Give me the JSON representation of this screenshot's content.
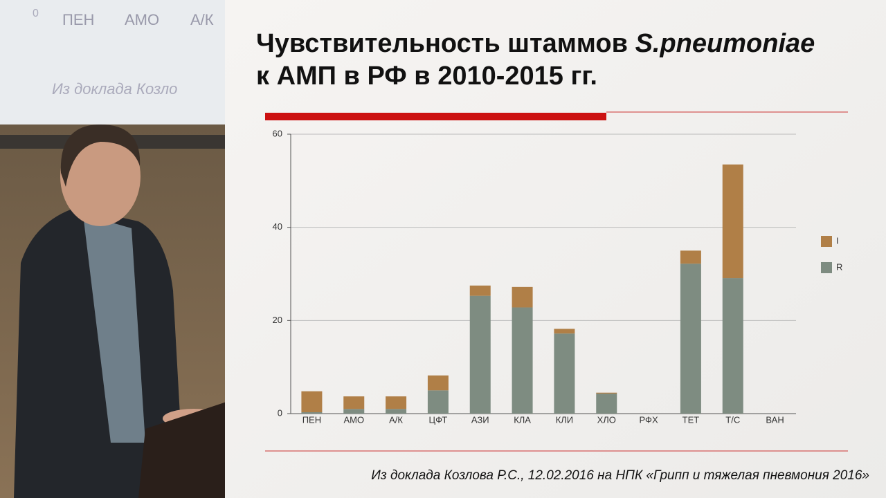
{
  "background_slide": {
    "texts": [
      "0",
      "ПЕН",
      "АМО",
      "А/К",
      "Из доклада Козло"
    ]
  },
  "chart_data": {
    "type": "stacked-bar",
    "title_parts": [
      "Чувствительность штаммов ",
      "S.pneumoniae",
      "к АМП в РФ в 2010-2015 гг."
    ],
    "categories": [
      "ПЕН",
      "АМО",
      "А/К",
      "ЦФТ",
      "АЗИ",
      "КЛА",
      "КЛИ",
      "ХЛО",
      "РФХ",
      "ТЕТ",
      "Т/С",
      "ВАН"
    ],
    "series": [
      {
        "name": "I",
        "color": "#b07f47",
        "values": [
          4.5,
          2.7,
          2.7,
          3.2,
          2.2,
          4.4,
          1.0,
          0.2,
          0,
          2.8,
          24.4,
          0
        ]
      },
      {
        "name": "R",
        "color": "#7e8c81",
        "values": [
          0.3,
          1.0,
          1.0,
          5.0,
          25.3,
          22.8,
          17.2,
          4.3,
          0,
          32.2,
          29.1,
          0
        ]
      }
    ],
    "ylim": [
      0,
      60
    ],
    "yticks": [
      0,
      20,
      40,
      60
    ],
    "grid": true,
    "legend": "right",
    "source": "Из доклада Козлова Р.С., 12.02.2016 на НПК «Грипп и тяжелая пневмония 2016»"
  }
}
